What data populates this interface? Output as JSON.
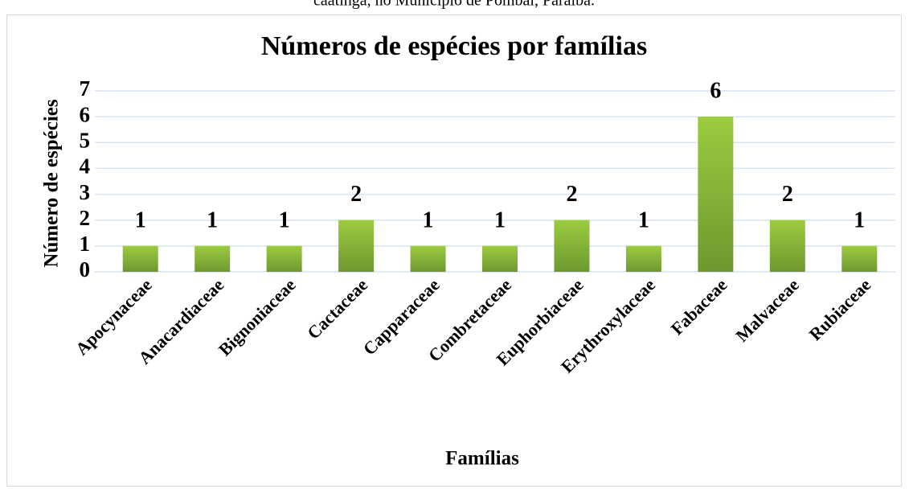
{
  "caption": "caatinga, no Município de Pombal, Paraíba.",
  "chart_data": {
    "type": "bar",
    "title": "Números de espécies por famílias",
    "x_label": "Famílias",
    "y_label": "Número de espécies",
    "categories": [
      "Apocynaceae",
      "Anacardiaceae",
      "Bignoniaceae",
      "Cactaceae",
      "Capparaceae",
      "Combretaceae",
      "Euphorbiaceae",
      "Erythroxylaceae",
      "Fabaceae",
      "Malvaceae",
      "Rubiaceae"
    ],
    "values": [
      1,
      1,
      1,
      2,
      1,
      1,
      2,
      1,
      6,
      2,
      1
    ],
    "color": "#8dba3c",
    "ylim": [
      0,
      7
    ],
    "yticks": [
      0,
      1,
      2,
      3,
      4,
      5,
      6,
      7
    ],
    "grid": true
  }
}
